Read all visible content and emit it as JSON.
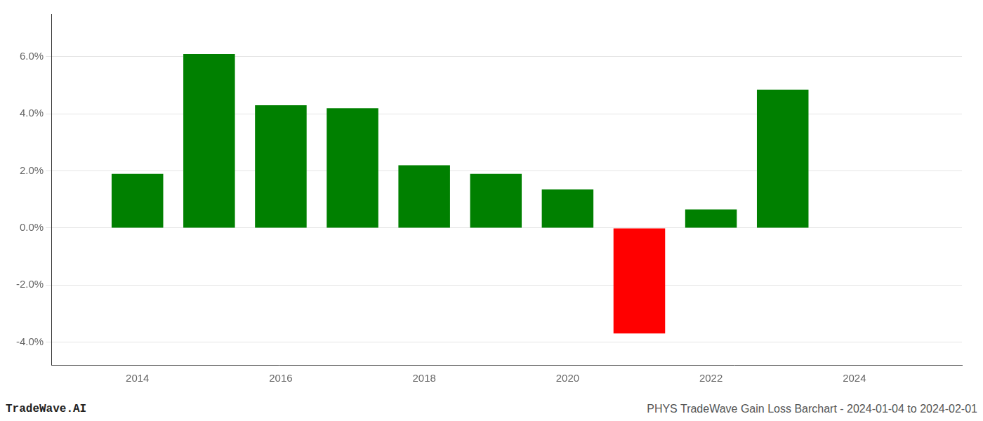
{
  "chart_data": {
    "type": "bar",
    "x": [
      2014,
      2015,
      2016,
      2017,
      2018,
      2019,
      2020,
      2021,
      2022,
      2023
    ],
    "values": [
      0.019,
      0.061,
      0.043,
      0.042,
      0.022,
      0.019,
      0.0135,
      -0.037,
      0.0065,
      0.0485
    ],
    "colors": [
      "#008000",
      "#008000",
      "#008000",
      "#008000",
      "#008000",
      "#008000",
      "#008000",
      "#ff0000",
      "#008000",
      "#008000"
    ],
    "xlim": [
      2012.8,
      2025.5
    ],
    "xticks": [
      2014,
      2016,
      2018,
      2020,
      2022,
      2024
    ],
    "ylim": [
      -0.048,
      0.075
    ],
    "yticks": [
      {
        "value": -0.04,
        "label": "-4.0%"
      },
      {
        "value": -0.02,
        "label": "-2.0%"
      },
      {
        "value": 0.0,
        "label": "0.0%"
      },
      {
        "value": 0.02,
        "label": "2.0%"
      },
      {
        "value": 0.04,
        "label": "4.0%"
      },
      {
        "value": 0.06,
        "label": "6.0%"
      }
    ],
    "grid": true,
    "annotations": [
      "TradeWave.AI",
      "PHYS TradeWave Gain Loss Barchart - 2024-01-04 to 2024-02-01"
    ]
  }
}
